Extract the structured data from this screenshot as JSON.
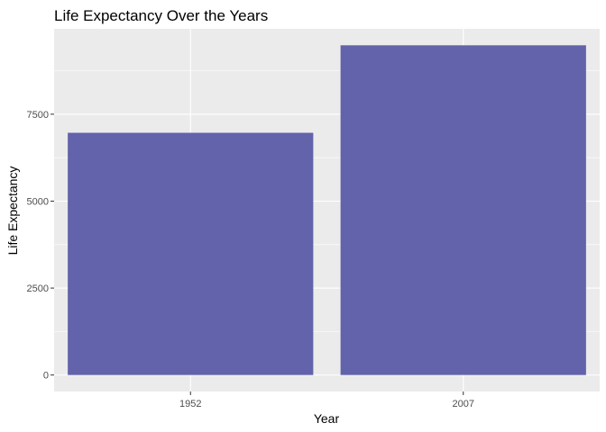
{
  "chart_data": {
    "type": "bar",
    "title": "Life Expectancy Over the Years",
    "xlabel": "Year",
    "ylabel": "Life Expectancy",
    "categories": [
      "1952",
      "2007"
    ],
    "values": [
      6966,
      9482
    ],
    "ylim": [
      -474,
      9956
    ],
    "yticks": [
      0,
      2500,
      5000,
      7500
    ],
    "ytick_labels": [
      "0",
      "2500",
      "5000",
      "7500"
    ],
    "grid": true,
    "legend": "none",
    "colors": {
      "bar": "#5e5ea8",
      "panel_background": "#ebebeb",
      "grid_major": "#ffffff",
      "tick_label": "#4d4d4d",
      "tick_mark": "#333333"
    }
  }
}
